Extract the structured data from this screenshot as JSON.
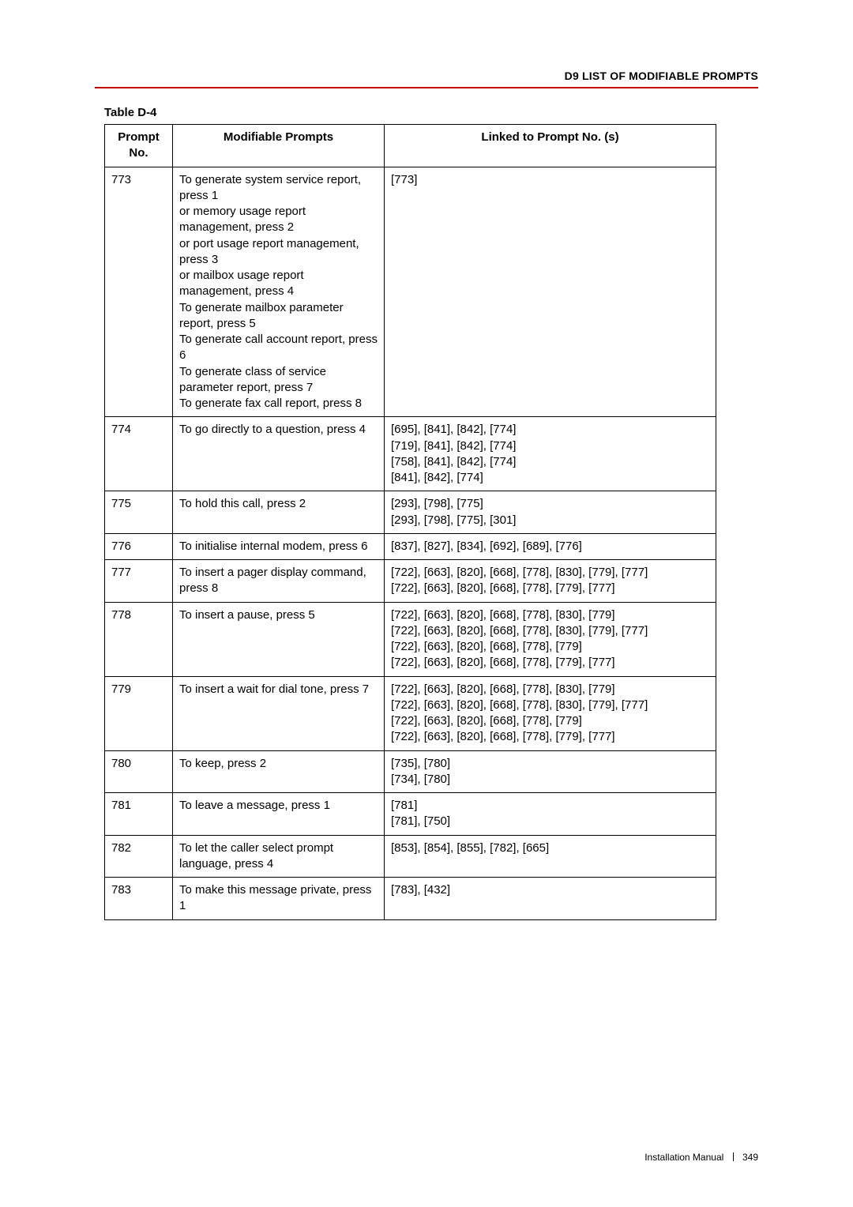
{
  "header": {
    "section_title": "D9 LIST OF MODIFIABLE PROMPTS",
    "rule_color": "#c00000"
  },
  "table": {
    "caption": "Table D-4",
    "columns": [
      "Prompt No.",
      "Modifiable Prompts",
      "Linked to Prompt No. (s)"
    ],
    "rows": [
      {
        "no": "773",
        "modifiable": "To generate system service report, press 1\nor memory usage report management, press 2\nor port usage report management, press 3\nor mailbox usage report management, press 4\nTo generate mailbox parameter report, press 5\nTo generate call account report, press 6\nTo generate class of service parameter report, press 7\nTo generate fax call report, press 8",
        "linked": [
          "[773]"
        ]
      },
      {
        "no": "774",
        "modifiable": "To go directly to a question, press 4",
        "linked": [
          "[695], [841], [842], [774]",
          "[719], [841], [842], [774]",
          "[758], [841], [842], [774]",
          "[841], [842], [774]"
        ]
      },
      {
        "no": "775",
        "modifiable": "To hold this call, press 2",
        "linked": [
          "[293], [798], [775]",
          "[293], [798], [775], [301]"
        ]
      },
      {
        "no": "776",
        "modifiable": "To initialise internal modem, press 6",
        "linked": [
          "[837], [827], [834], [692], [689], [776]"
        ]
      },
      {
        "no": "777",
        "modifiable": "To insert a pager display command, press 8",
        "linked": [
          "[722], [663], [820], [668], [778], [830], [779], [777]",
          "[722], [663], [820], [668], [778], [779], [777]"
        ]
      },
      {
        "no": "778",
        "modifiable": "To insert a pause, press 5",
        "linked": [
          "[722], [663], [820], [668], [778], [830], [779]",
          "[722], [663], [820], [668], [778], [830], [779], [777]",
          "[722], [663], [820], [668], [778], [779]",
          "[722], [663], [820], [668], [778], [779], [777]"
        ]
      },
      {
        "no": "779",
        "modifiable": "To insert a wait for dial tone, press 7",
        "linked": [
          "[722], [663], [820], [668], [778], [830], [779]",
          "[722], [663], [820], [668], [778], [830], [779], [777]",
          "[722], [663], [820], [668], [778], [779]",
          "[722], [663], [820], [668], [778], [779], [777]"
        ]
      },
      {
        "no": "780",
        "modifiable": "To keep, press 2",
        "linked": [
          "[735], [780]",
          "[734], [780]"
        ]
      },
      {
        "no": "781",
        "modifiable": "To leave a message, press 1",
        "linked": [
          "[781]",
          "[781], [750]"
        ]
      },
      {
        "no": "782",
        "modifiable": "To let the caller select prompt language, press 4",
        "linked": [
          "[853], [854], [855], [782], [665]"
        ]
      },
      {
        "no": "783",
        "modifiable": "To make this message private, press 1",
        "linked": [
          "[783], [432]"
        ]
      }
    ]
  },
  "footer": {
    "doc_title": "Installation Manual",
    "page_number": "349"
  }
}
